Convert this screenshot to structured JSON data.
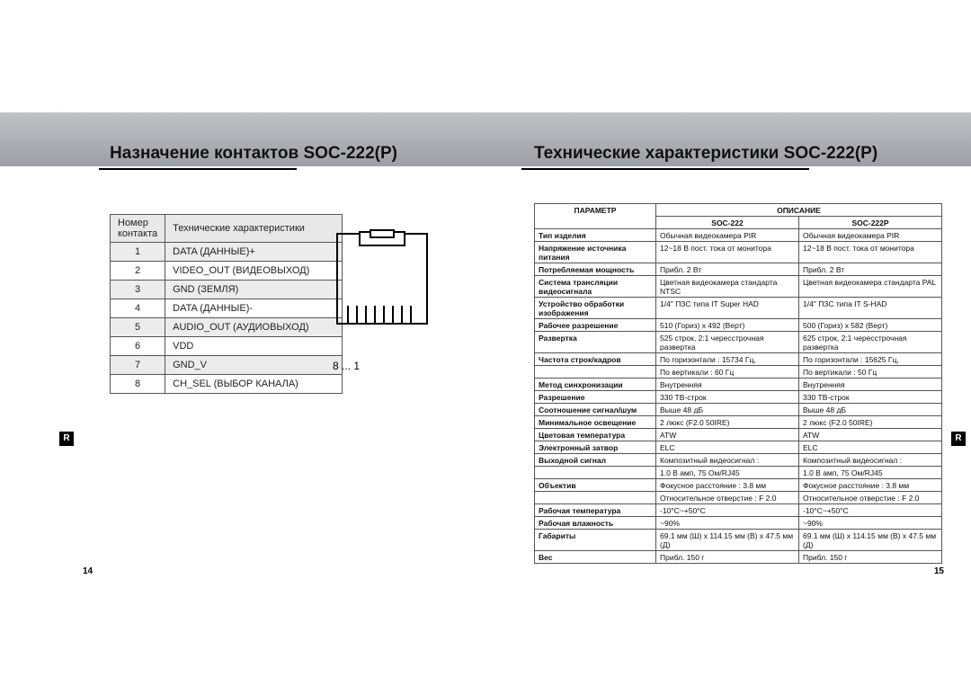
{
  "titles": {
    "left": "Назначение контактов SOC-222(P)",
    "right": "Технические характеристики SOC-222(P)"
  },
  "pin_table": {
    "headers": [
      "Номер контакта",
      "Технические характеристики"
    ],
    "rows": [
      [
        "1",
        "DATA (ДАННЫЕ)+"
      ],
      [
        "2",
        "VIDEO_OUT (ВИДЕОВЫХОД)"
      ],
      [
        "3",
        "GND (ЗЕМЛЯ)"
      ],
      [
        "4",
        "DATA (ДАННЫЕ)-"
      ],
      [
        "5",
        "AUDIO_OUT (АУДИОВЫХОД)"
      ],
      [
        "6",
        "VDD"
      ],
      [
        "7",
        "GND_V"
      ],
      [
        "8",
        "CH_SEL (ВЫБОР КАНАЛА)"
      ]
    ]
  },
  "rj_caption": "8    ...    1",
  "spec_table": {
    "param_header": "ПАРАМЕТР",
    "desc_header": "ОПИСАНИЕ",
    "col_headers": [
      "SOC-222",
      "SOC-222P"
    ],
    "rows": [
      [
        "Тип изделия",
        "Обычная видеокамера PIR",
        "Обычная видеокамера PIR"
      ],
      [
        "Напряжение источника питания",
        "12~18 В пост. тока от монитора",
        "12~18 В пост. тока от монитора"
      ],
      [
        "Потребляемая мощность",
        "Прибл. 2 Вт",
        "Прибл. 2 Вт"
      ],
      [
        "Система трансляции видеосигнала",
        "Цветная видеокамера стандарта NTSC",
        "Цветная видеокамера стандарта PAL"
      ],
      [
        "Устройство обработки изображения",
        "1/4\" ПЗС типа IT Super HAD",
        "1/4\" ПЗС типа IT S-HAD"
      ],
      [
        "Рабочее разрешение",
        "510 (Гориз) x 492 (Верт)",
        "500 (Гориз) x 582 (Верт)"
      ],
      [
        "Развертка",
        "525 строк, 2:1 чересстрочная развертка",
        "625 строк, 2:1 чересстрочная развертка"
      ],
      [
        "Частота строк/кадров",
        "По горизонтали : 15734 Гц,",
        "По горизонтали : 15625 Гц,"
      ],
      [
        "",
        "По вертикали : 60 Гц",
        "По вертикали : 50 Гц"
      ],
      [
        "Метод синхронизации",
        "Внутренняя",
        "Внутренняя"
      ],
      [
        "Разрешение",
        "330 ТВ-строк",
        "330 ТВ-строк"
      ],
      [
        "Соотношение сигнал/шум",
        "Выше 48 дБ",
        "Выше 48 дБ"
      ],
      [
        "Минимальное освещение",
        "2 люкс (F2.0 50IRE)",
        "2 люкс (F2.0 50IRE)"
      ],
      [
        "Цветовая температура",
        "ATW",
        "ATW"
      ],
      [
        "Электронный затвор",
        "ELC",
        "ELC"
      ],
      [
        "Выходной сигнал",
        "Композитный видеосигнал :",
        "Композитный видеосигнал :"
      ],
      [
        "",
        "1.0 В амп, 75 Ом/RJ45",
        "1.0 В амп, 75 Ом/RJ45"
      ],
      [
        "Объектив",
        "Фокусное расстояние : 3.8 мм",
        "Фокусное расстояние : 3.8 мм"
      ],
      [
        "",
        "Относительное отверстие : F 2.0",
        "Относительное отверстие : F 2.0"
      ],
      [
        "Рабочая температура",
        "-10°C~+50°C",
        "-10°C~+50°C"
      ],
      [
        "Рабочая влажность",
        "~90%",
        "~90%"
      ],
      [
        "Габариты",
        "69.1 мм (Ш) x 114.15 мм (В) x 47.5 мм (Д)",
        "69.1 мм (Ш) x 114.15 мм (В) x 47.5 мм (Д)"
      ],
      [
        "Вес",
        "Прибл. 150 г",
        "Прибл. 150 г"
      ]
    ]
  },
  "side_tab": "R",
  "page_left": "14",
  "page_right": "15"
}
